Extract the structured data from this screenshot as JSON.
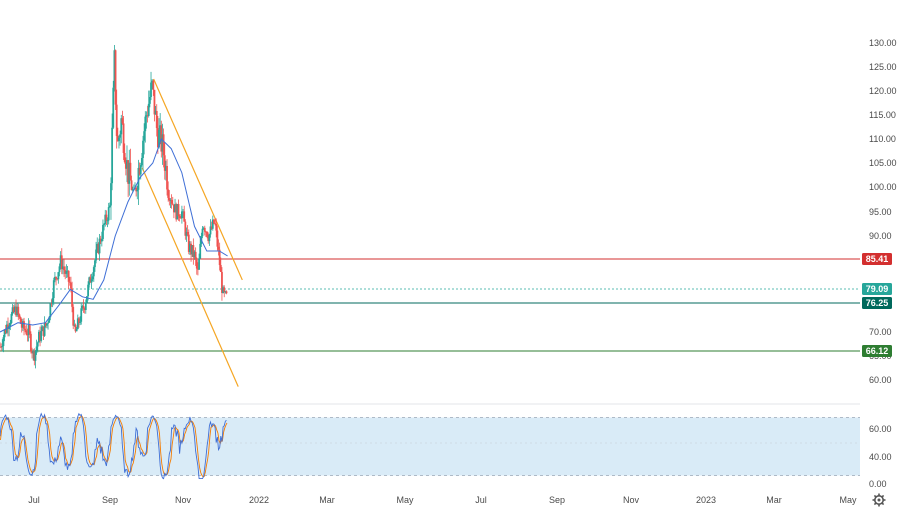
{
  "chart_data": [
    {
      "type": "candlestick",
      "y_axis": {
        "ticks": [
          130,
          125,
          120,
          115,
          110,
          105,
          100,
          95,
          90,
          70,
          65,
          60
        ],
        "tick_labels": [
          "130.00",
          "125.00",
          "120.00",
          "115.00",
          "110.00",
          "105.00",
          "100.00",
          "95.00",
          "90.00",
          "70.00",
          "65.00",
          "60.00"
        ],
        "range": [
          58,
          132
        ]
      },
      "x_axis": {
        "labels": [
          "Jul",
          "Sep",
          "Nov",
          "2022",
          "Mar",
          "May",
          "Jul",
          "Sep",
          "Nov",
          "2023",
          "Mar",
          "May"
        ]
      },
      "anchor_path": [
        [
          "2021-06-01",
          67
        ],
        [
          "2021-06-20",
          72
        ],
        [
          "2021-07-10",
          75
        ],
        [
          "2021-07-25",
          71
        ],
        [
          "2021-08-10",
          70
        ],
        [
          "2021-08-22",
          65
        ],
        [
          "2021-09-05",
          69
        ],
        [
          "2021-09-25",
          72
        ],
        [
          "2021-10-10",
          80
        ],
        [
          "2021-10-28",
          85
        ],
        [
          "2021-11-10",
          82
        ],
        [
          "2021-11-20",
          80
        ],
        [
          "2021-12-01",
          69
        ],
        [
          "2021-12-10",
          72
        ],
        [
          "2021-12-25",
          76
        ],
        [
          "2022-01-10",
          82
        ],
        [
          "2022-01-25",
          87
        ],
        [
          "2022-02-10",
          92
        ],
        [
          "2022-02-25",
          96
        ],
        [
          "2022-03-08",
          126
        ],
        [
          "2022-03-15",
          108
        ],
        [
          "2022-03-25",
          114
        ],
        [
          "2022-04-10",
          103
        ],
        [
          "2022-04-25",
          98
        ],
        [
          "2022-05-10",
          106
        ],
        [
          "2022-05-25",
          115
        ],
        [
          "2022-06-08",
          121
        ],
        [
          "2022-06-20",
          112
        ],
        [
          "2022-07-05",
          108
        ],
        [
          "2022-07-20",
          99
        ],
        [
          "2022-08-05",
          95
        ],
        [
          "2022-08-20",
          95
        ],
        [
          "2022-09-05",
          88
        ],
        [
          "2022-09-20",
          86
        ],
        [
          "2022-09-28",
          82
        ],
        [
          "2022-10-10",
          93
        ],
        [
          "2022-10-25",
          90
        ],
        [
          "2022-11-08",
          93
        ],
        [
          "2022-11-20",
          85
        ],
        [
          "2022-11-28",
          78
        ],
        [
          "2022-12-07",
          77
        ],
        [
          "2022-12-10",
          79
        ]
      ],
      "moving_average": [
        [
          "2021-06-01",
          70
        ],
        [
          "2021-07-15",
          72
        ],
        [
          "2021-08-20",
          71.5
        ],
        [
          "2021-09-20",
          72
        ],
        [
          "2021-10-25",
          76
        ],
        [
          "2021-11-20",
          79
        ],
        [
          "2021-12-20",
          77.5
        ],
        [
          "2022-01-15",
          77
        ],
        [
          "2022-02-10",
          81
        ],
        [
          "2022-03-10",
          90
        ],
        [
          "2022-04-10",
          97
        ],
        [
          "2022-05-10",
          102
        ],
        [
          "2022-06-10",
          105
        ],
        [
          "2022-07-01",
          110
        ],
        [
          "2022-07-25",
          108
        ],
        [
          "2022-08-20",
          103
        ],
        [
          "2022-09-20",
          92
        ],
        [
          "2022-10-20",
          87
        ],
        [
          "2022-11-20",
          87
        ],
        [
          "2022-12-10",
          86
        ]
      ],
      "horizontal_levels": [
        {
          "value": 85.41,
          "label": "85.41",
          "color": "#d32f2f"
        },
        {
          "value": 79.09,
          "label": "79.09",
          "color": "#26a69a"
        },
        {
          "value": 76.25,
          "label": "76.25",
          "color": "#00695c"
        },
        {
          "value": 66.12,
          "label": "66.12",
          "color": "#2e7d32"
        }
      ],
      "channel": {
        "color": "#f5a623",
        "upper": [
          [
            "2022-06-12",
            122.5
          ],
          [
            "2023-01-15",
            81
          ]
        ],
        "lower": [
          [
            "2022-05-15",
            104
          ],
          [
            "2023-01-05",
            58.5
          ]
        ]
      },
      "colors": {
        "up": "#26a69a",
        "down": "#ef5350",
        "ma": "#3f6fd6"
      }
    },
    {
      "type": "oscillator",
      "y_axis": {
        "ticks": [
          60,
          40,
          0
        ],
        "tick_labels": [
          "60.00",
          "40.00",
          "0.00"
        ],
        "range": [
          0,
          100
        ]
      },
      "bands": {
        "upper": 80,
        "lower": 20,
        "fill": "#d9ebf7"
      },
      "colors": {
        "k": "#3f6fd6",
        "d": "#f57c00"
      }
    }
  ]
}
